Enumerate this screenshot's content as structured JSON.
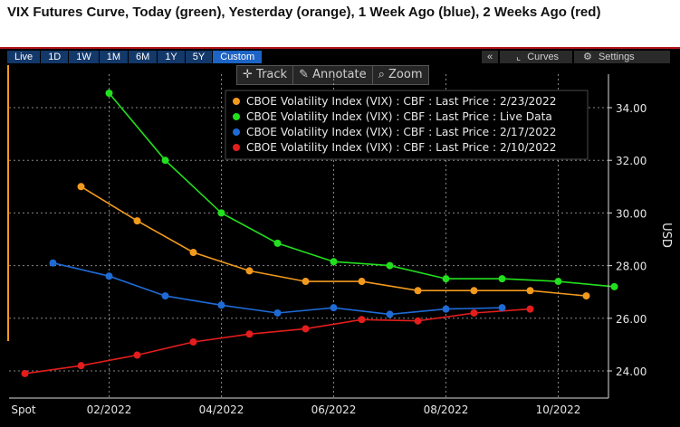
{
  "title": "VIX Futures Curve, Today (green), Yesterday (orange), 1 Week Ago (blue), 2 Weeks Ago (red)",
  "tabs": [
    {
      "label": "Live",
      "active": false
    },
    {
      "label": "1D",
      "active": false
    },
    {
      "label": "1W",
      "active": false
    },
    {
      "label": "1M",
      "active": false
    },
    {
      "label": "6M",
      "active": false
    },
    {
      "label": "1Y",
      "active": false
    },
    {
      "label": "5Y",
      "active": false
    },
    {
      "label": "Custom",
      "active": true
    }
  ],
  "right_bar": {
    "collapse": "«",
    "curves": "Curves",
    "settings": "Settings"
  },
  "tools": {
    "track": "Track",
    "annotate": "Annotate",
    "zoom": "Zoom"
  },
  "colors": {
    "background": "#000000",
    "grid": "#bfbfbf",
    "accent_tab": "#1d64c6"
  },
  "chart_data": {
    "type": "line",
    "ylabel": "USD",
    "ylim": [
      23,
      35.5
    ],
    "yticks": [
      "24.00",
      "26.00",
      "28.00",
      "30.00",
      "32.00",
      "34.00"
    ],
    "xtick_labels": [
      "Spot",
      "02/2022",
      "04/2022",
      "06/2022",
      "08/2022",
      "10/2022"
    ],
    "grid": true,
    "legend_position": "top-right",
    "series": [
      {
        "name": "CBOE Volatility Index (VIX) : CBF : Last Price : 2/23/2022",
        "color": "#f29a1d",
        "x": [
          0.5,
          1.5,
          2.5,
          3.5,
          4.5,
          5.5,
          6.5,
          7.5,
          8.5,
          9.5
        ],
        "values": [
          31.0,
          29.7,
          28.5,
          27.8,
          27.4,
          27.4,
          27.05,
          27.05,
          27.05,
          26.85
        ]
      },
      {
        "name": "CBOE Volatility Index (VIX) : CBF : Last Price : Live Data",
        "color": "#22e01e",
        "x": [
          1.0,
          2.0,
          3.0,
          4.0,
          5.0,
          6.0,
          7.0,
          8.0,
          9.0,
          10.0
        ],
        "values": [
          34.55,
          32.0,
          30.0,
          28.85,
          28.15,
          28.0,
          27.5,
          27.5,
          27.4,
          27.2
        ]
      },
      {
        "name": "CBOE Volatility Index (VIX) : CBF : Last Price : 2/17/2022",
        "color": "#1f6bd6",
        "x": [
          0.0,
          1.0,
          2.0,
          3.0,
          4.0,
          5.0,
          6.0,
          7.0,
          8.0
        ],
        "values": [
          28.1,
          27.6,
          26.85,
          26.5,
          26.2,
          26.4,
          26.15,
          26.35,
          26.4
        ]
      },
      {
        "name": "CBOE Volatility Index (VIX) : CBF : Last Price : 2/10/2022",
        "color": "#e31d1d",
        "x": [
          -0.5,
          0.5,
          1.5,
          2.5,
          3.5,
          4.5,
          5.5,
          6.5,
          7.5,
          8.5
        ],
        "values": [
          23.9,
          24.2,
          24.6,
          25.1,
          25.4,
          25.6,
          25.95,
          25.9,
          26.2,
          26.35
        ]
      }
    ]
  }
}
